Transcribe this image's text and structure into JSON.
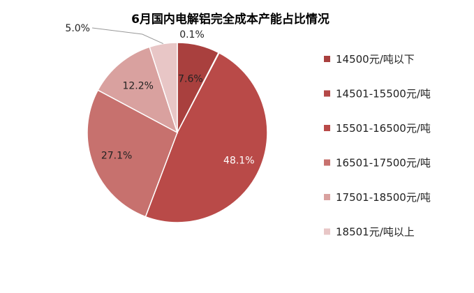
{
  "chart_data": {
    "type": "pie",
    "title": "6月国内电解铝完全成本产能占比情况",
    "legend_position": "right",
    "slices": [
      {
        "label": "14500元/吨以下",
        "value": 7.6,
        "display": "7.6%",
        "color": "#a9403e"
      },
      {
        "label": "14501-15500元/吨",
        "value": 0.1,
        "display": "0.1%",
        "color": "#b44847"
      },
      {
        "label": "15501-16500元/吨",
        "value": 48.1,
        "display": "48.1%",
        "color": "#b94a48"
      },
      {
        "label": "16501-17500元/吨",
        "value": 27.1,
        "display": "27.1%",
        "color": "#c7716e"
      },
      {
        "label": "17501-18500元/吨",
        "value": 12.2,
        "display": "12.2%",
        "color": "#d9a19f"
      },
      {
        "label": "18501元/吨以上",
        "value": 5.0,
        "display": "5.0%",
        "color": "#e8c6c6"
      }
    ]
  }
}
